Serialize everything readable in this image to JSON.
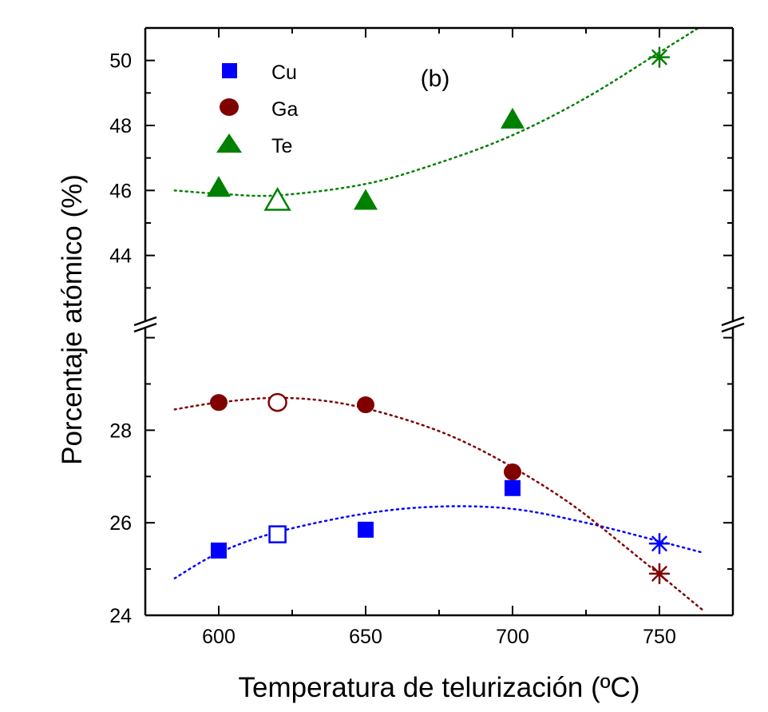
{
  "chart_data": {
    "type": "scatter",
    "title": "",
    "panel_label": "(b)",
    "xlabel": "Temperatura de telurización  (ºC)",
    "ylabel": "Porcentaje atómico  (%)",
    "xlim": [
      575,
      775
    ],
    "x_ticks": [
      "600",
      "650",
      "700",
      "750"
    ],
    "y_lower": {
      "ylim": [
        24,
        30.2
      ],
      "ticks": [
        "24",
        "26",
        "28"
      ]
    },
    "y_upper": {
      "ylim": [
        42,
        51
      ],
      "ticks": [
        "44",
        "46",
        "48",
        "50"
      ]
    },
    "axis_break": true,
    "legend": {
      "placement": "top-left",
      "entries": [
        "Cu",
        "Ga",
        "Te"
      ]
    },
    "series": [
      {
        "name": "Cu",
        "color": "#0000ff",
        "marker": "square",
        "panel": "lower",
        "points": [
          {
            "x": 600,
            "y": 25.4,
            "style": "filled"
          },
          {
            "x": 620,
            "y": 25.75,
            "style": "open"
          },
          {
            "x": 650,
            "y": 25.85,
            "style": "filled"
          },
          {
            "x": 700,
            "y": 26.75,
            "style": "filled"
          },
          {
            "x": 750,
            "y": 25.55,
            "style": "asterisk"
          }
        ],
        "trend": {
          "x": [
            585,
            600,
            620,
            650,
            675,
            700,
            725,
            750,
            765
          ],
          "y": [
            24.8,
            25.35,
            25.8,
            26.2,
            26.35,
            26.3,
            26.0,
            25.6,
            25.35
          ]
        }
      },
      {
        "name": "Ga",
        "color": "#800000",
        "marker": "circle",
        "panel": "lower",
        "points": [
          {
            "x": 600,
            "y": 28.6,
            "style": "filled"
          },
          {
            "x": 620,
            "y": 28.6,
            "style": "open"
          },
          {
            "x": 650,
            "y": 28.55,
            "style": "filled"
          },
          {
            "x": 700,
            "y": 27.1,
            "style": "filled"
          },
          {
            "x": 750,
            "y": 24.9,
            "style": "asterisk"
          }
        ],
        "trend": {
          "x": [
            585,
            600,
            620,
            640,
            660,
            680,
            700,
            720,
            740,
            765
          ],
          "y": [
            28.45,
            28.6,
            28.7,
            28.6,
            28.3,
            27.85,
            27.2,
            26.4,
            25.4,
            24.1
          ]
        }
      },
      {
        "name": "Te",
        "color": "#008000",
        "marker": "triangle",
        "panel": "upper",
        "points": [
          {
            "x": 600,
            "y": 46.1,
            "style": "filled"
          },
          {
            "x": 620,
            "y": 45.7,
            "style": "open"
          },
          {
            "x": 650,
            "y": 45.7,
            "style": "filled"
          },
          {
            "x": 700,
            "y": 48.2,
            "style": "filled"
          },
          {
            "x": 750,
            "y": 50.1,
            "style": "asterisk"
          }
        ],
        "trend": {
          "x": [
            585,
            600,
            620,
            650,
            675,
            700,
            725,
            750,
            765
          ],
          "y": [
            46.0,
            45.9,
            45.85,
            46.2,
            46.85,
            47.7,
            48.85,
            50.25,
            51.1
          ]
        }
      }
    ]
  }
}
